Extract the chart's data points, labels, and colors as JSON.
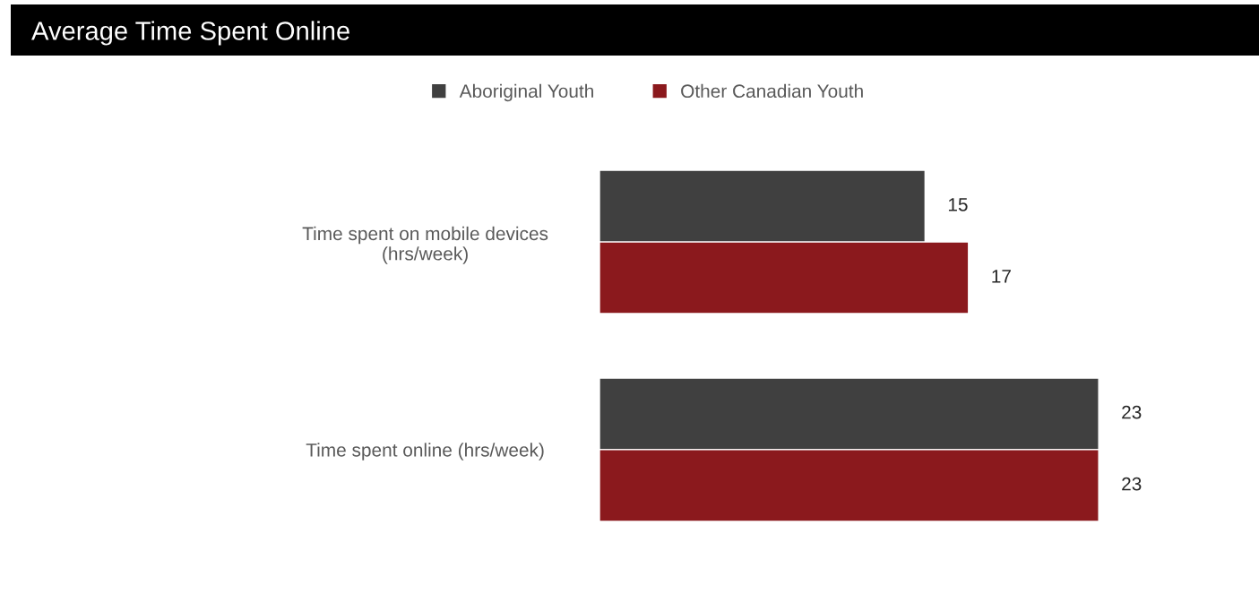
{
  "chart_data": {
    "type": "bar",
    "title": "Average Time Spent Online",
    "orientation": "horizontal",
    "categories": [
      "Time spent on mobile devices\n(hrs/week)",
      "Time spent online (hrs/week)"
    ],
    "series": [
      {
        "name": "Aboriginal Youth",
        "color": "#404040",
        "values": [
          15,
          23
        ]
      },
      {
        "name": "Other Canadian Youth",
        "color": "#8b191d",
        "values": [
          17,
          23
        ]
      }
    ],
    "data_labels": true,
    "legend": "top",
    "grid": false
  }
}
